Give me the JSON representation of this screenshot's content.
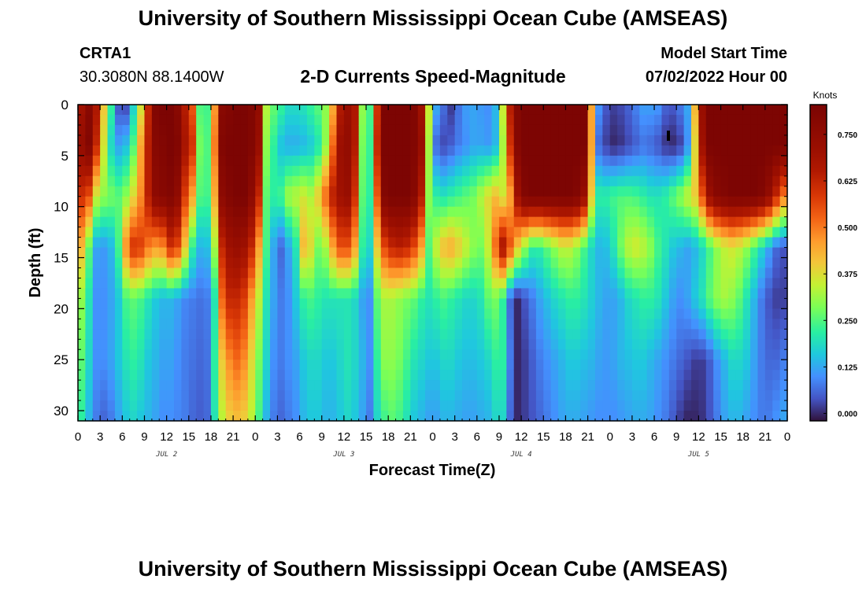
{
  "header": {
    "title": "University of Southern Mississippi Ocean Cube (AMSEAS)",
    "station": "CRTA1",
    "coords": "30.3080N  88.1400W",
    "plot_title": "2-D Currents Speed-Magnitude",
    "model_start_label": "Model Start Time",
    "model_start_value": "07/02/2022 Hour 00"
  },
  "footer": {
    "title": "University of Southern Mississippi Ocean Cube (AMSEAS)"
  },
  "chart_data": {
    "type": "heatmap",
    "title": "2-D Currents Speed-Magnitude",
    "xlabel": "Forecast Time(Z)",
    "ylabel": "Depth (ft)",
    "x_range_hours": [
      0,
      96
    ],
    "x_tick_labels": [
      "0",
      "3",
      "6",
      "9",
      "12",
      "15",
      "18",
      "21",
      "0",
      "3",
      "6",
      "9",
      "12",
      "15",
      "18",
      "21",
      "0",
      "3",
      "6",
      "9",
      "12",
      "15",
      "18",
      "21",
      "0",
      "3",
      "6",
      "9",
      "12",
      "15",
      "18",
      "21",
      "0"
    ],
    "day_labels": [
      {
        "label": "JUL 2",
        "hour": 12
      },
      {
        "label": "JUL 3",
        "hour": 36
      },
      {
        "label": "JUL 4",
        "hour": 60
      },
      {
        "label": "JUL 5",
        "hour": 84
      }
    ],
    "y_range_ft": [
      0,
      31
    ],
    "y_ticks": [
      0,
      5,
      10,
      15,
      20,
      25,
      30
    ],
    "colorbar": {
      "unit_label": "Knots",
      "range": [
        -0.02,
        0.83
      ],
      "ticks": [
        0.0,
        0.125,
        0.25,
        0.375,
        0.5,
        0.625,
        0.75
      ],
      "tick_labels": [
        "0.000",
        "0.125",
        "0.250",
        "0.375",
        "0.500",
        "0.625",
        "0.750"
      ]
    },
    "time_hours": [
      0,
      1,
      2,
      3,
      4,
      5,
      6,
      7,
      8,
      9,
      10,
      11,
      12,
      13,
      14,
      15,
      16,
      17,
      18,
      19,
      20,
      21,
      22,
      23,
      24,
      25,
      26,
      27,
      28,
      29,
      30,
      31,
      32,
      33,
      34,
      35,
      36,
      37,
      38,
      39,
      40,
      41,
      42,
      43,
      44,
      45,
      46,
      47,
      48,
      49,
      50,
      51,
      52,
      53,
      54,
      55,
      56,
      57,
      58,
      59,
      60,
      61,
      62,
      63,
      64,
      65,
      66,
      67,
      68,
      69,
      70,
      71,
      72,
      73,
      74,
      75,
      76,
      77,
      78,
      79,
      80,
      81,
      82,
      83,
      84,
      85,
      86,
      87,
      88,
      89,
      90,
      91,
      92,
      93,
      94,
      95
    ],
    "depth_ft": [
      0.5,
      4,
      9,
      14,
      19,
      25,
      30.5
    ],
    "speed_knots_by_depth": [
      [
        0.7,
        0.78,
        0.66,
        0.4,
        0.22,
        0.05,
        0.04,
        0.18,
        0.37,
        0.62,
        0.8,
        0.82,
        0.82,
        0.78,
        0.65,
        0.55,
        0.25,
        0.24,
        0.47,
        0.78,
        0.8,
        0.82,
        0.82,
        0.8,
        0.74,
        0.33,
        0.26,
        0.22,
        0.18,
        0.18,
        0.19,
        0.22,
        0.25,
        0.3,
        0.45,
        0.66,
        0.72,
        0.66,
        0.3,
        0.24,
        0.6,
        0.82,
        0.82,
        0.82,
        0.82,
        0.8,
        0.7,
        0.35,
        0.12,
        0.06,
        0.02,
        0.07,
        0.11,
        0.12,
        0.11,
        0.1,
        0.14,
        0.35,
        0.64,
        0.79,
        0.82,
        0.82,
        0.82,
        0.82,
        0.82,
        0.82,
        0.82,
        0.82,
        0.82,
        0.45,
        0.1,
        0.04,
        0.02,
        0.03,
        0.05,
        0.08,
        0.11,
        0.11,
        0.1,
        0.05,
        0.04,
        0.07,
        0.12,
        0.42,
        0.72,
        0.82,
        0.82,
        0.82,
        0.82,
        0.82,
        0.82,
        0.82,
        0.82,
        0.82,
        0.82,
        0.82
      ],
      [
        0.74,
        0.8,
        0.62,
        0.36,
        0.18,
        0.12,
        0.15,
        0.25,
        0.45,
        0.64,
        0.78,
        0.8,
        0.82,
        0.8,
        0.68,
        0.6,
        0.28,
        0.25,
        0.5,
        0.8,
        0.82,
        0.82,
        0.82,
        0.8,
        0.72,
        0.3,
        0.22,
        0.15,
        0.13,
        0.13,
        0.14,
        0.16,
        0.2,
        0.3,
        0.52,
        0.71,
        0.74,
        0.65,
        0.28,
        0.23,
        0.62,
        0.82,
        0.82,
        0.82,
        0.82,
        0.8,
        0.72,
        0.32,
        0.06,
        0.03,
        0.05,
        0.08,
        0.1,
        0.12,
        0.12,
        0.11,
        0.14,
        0.32,
        0.6,
        0.79,
        0.82,
        0.82,
        0.82,
        0.82,
        0.82,
        0.82,
        0.82,
        0.82,
        0.82,
        0.45,
        0.06,
        0.02,
        0.0,
        0.01,
        0.03,
        0.05,
        0.07,
        0.06,
        0.04,
        0.01,
        0.0,
        0.02,
        0.1,
        0.38,
        0.7,
        0.82,
        0.82,
        0.82,
        0.82,
        0.82,
        0.82,
        0.82,
        0.82,
        0.82,
        0.82,
        0.82
      ],
      [
        0.6,
        0.55,
        0.35,
        0.3,
        0.28,
        0.26,
        0.3,
        0.38,
        0.48,
        0.64,
        0.76,
        0.78,
        0.8,
        0.75,
        0.58,
        0.45,
        0.25,
        0.24,
        0.44,
        0.76,
        0.8,
        0.82,
        0.82,
        0.76,
        0.62,
        0.26,
        0.22,
        0.24,
        0.32,
        0.34,
        0.36,
        0.33,
        0.4,
        0.52,
        0.64,
        0.7,
        0.72,
        0.6,
        0.26,
        0.22,
        0.54,
        0.8,
        0.82,
        0.82,
        0.82,
        0.78,
        0.65,
        0.3,
        0.22,
        0.2,
        0.22,
        0.24,
        0.26,
        0.28,
        0.33,
        0.38,
        0.42,
        0.36,
        0.45,
        0.7,
        0.8,
        0.82,
        0.82,
        0.82,
        0.82,
        0.82,
        0.82,
        0.8,
        0.72,
        0.4,
        0.22,
        0.22,
        0.24,
        0.25,
        0.25,
        0.24,
        0.22,
        0.2,
        0.2,
        0.22,
        0.26,
        0.3,
        0.35,
        0.4,
        0.55,
        0.72,
        0.78,
        0.8,
        0.82,
        0.82,
        0.82,
        0.82,
        0.8,
        0.74,
        0.62,
        0.5
      ],
      [
        0.42,
        0.26,
        0.12,
        0.11,
        0.14,
        0.24,
        0.48,
        0.6,
        0.58,
        0.5,
        0.46,
        0.48,
        0.6,
        0.56,
        0.4,
        0.22,
        0.14,
        0.15,
        0.32,
        0.62,
        0.7,
        0.72,
        0.7,
        0.62,
        0.45,
        0.24,
        0.12,
        0.06,
        0.12,
        0.2,
        0.42,
        0.38,
        0.28,
        0.32,
        0.45,
        0.55,
        0.55,
        0.45,
        0.22,
        0.18,
        0.4,
        0.56,
        0.62,
        0.64,
        0.62,
        0.56,
        0.45,
        0.25,
        0.35,
        0.42,
        0.44,
        0.4,
        0.35,
        0.3,
        0.28,
        0.35,
        0.52,
        0.68,
        0.55,
        0.4,
        0.3,
        0.22,
        0.22,
        0.26,
        0.3,
        0.34,
        0.34,
        0.3,
        0.24,
        0.18,
        0.14,
        0.15,
        0.2,
        0.28,
        0.34,
        0.36,
        0.34,
        0.3,
        0.24,
        0.2,
        0.16,
        0.14,
        0.12,
        0.14,
        0.18,
        0.24,
        0.3,
        0.34,
        0.36,
        0.34,
        0.3,
        0.24,
        0.18,
        0.12,
        0.06,
        0.04
      ],
      [
        0.3,
        0.2,
        0.1,
        0.1,
        0.12,
        0.16,
        0.24,
        0.26,
        0.24,
        0.2,
        0.16,
        0.14,
        0.14,
        0.12,
        0.09,
        0.08,
        0.07,
        0.08,
        0.2,
        0.52,
        0.62,
        0.62,
        0.58,
        0.46,
        0.34,
        0.2,
        0.12,
        0.08,
        0.1,
        0.16,
        0.22,
        0.24,
        0.22,
        0.2,
        0.2,
        0.2,
        0.2,
        0.18,
        0.12,
        0.1,
        0.26,
        0.32,
        0.32,
        0.3,
        0.28,
        0.26,
        0.22,
        0.2,
        0.22,
        0.24,
        0.22,
        0.2,
        0.18,
        0.18,
        0.2,
        0.26,
        0.28,
        0.22,
        0.06,
        0.0,
        0.04,
        0.08,
        0.12,
        0.15,
        0.18,
        0.2,
        0.22,
        0.22,
        0.2,
        0.17,
        0.14,
        0.12,
        0.12,
        0.14,
        0.18,
        0.2,
        0.22,
        0.22,
        0.2,
        0.16,
        0.12,
        0.1,
        0.12,
        0.16,
        0.2,
        0.26,
        0.3,
        0.32,
        0.3,
        0.26,
        0.2,
        0.14,
        0.08,
        0.04,
        0.02,
        0.02
      ],
      [
        0.26,
        0.18,
        0.1,
        0.1,
        0.12,
        0.16,
        0.2,
        0.22,
        0.2,
        0.16,
        0.14,
        0.12,
        0.12,
        0.1,
        0.08,
        0.07,
        0.06,
        0.07,
        0.22,
        0.4,
        0.48,
        0.52,
        0.48,
        0.38,
        0.28,
        0.18,
        0.1,
        0.08,
        0.1,
        0.12,
        0.16,
        0.18,
        0.18,
        0.16,
        0.16,
        0.18,
        0.2,
        0.18,
        0.14,
        0.1,
        0.22,
        0.3,
        0.3,
        0.28,
        0.24,
        0.2,
        0.18,
        0.16,
        0.16,
        0.18,
        0.18,
        0.16,
        0.15,
        0.15,
        0.16,
        0.18,
        0.22,
        0.22,
        0.08,
        0.0,
        0.02,
        0.05,
        0.08,
        0.1,
        0.12,
        0.14,
        0.16,
        0.16,
        0.15,
        0.14,
        0.12,
        0.11,
        0.12,
        0.14,
        0.15,
        0.16,
        0.16,
        0.14,
        0.12,
        0.1,
        0.08,
        0.06,
        0.04,
        0.02,
        0.02,
        0.05,
        0.1,
        0.14,
        0.18,
        0.18,
        0.16,
        0.12,
        0.08,
        0.06,
        0.06,
        0.08
      ],
      [
        0.22,
        0.14,
        0.08,
        0.06,
        0.08,
        0.12,
        0.16,
        0.18,
        0.16,
        0.14,
        0.12,
        0.1,
        0.1,
        0.09,
        0.08,
        0.06,
        0.05,
        0.06,
        0.2,
        0.34,
        0.4,
        0.42,
        0.4,
        0.34,
        0.24,
        0.14,
        0.08,
        0.06,
        0.08,
        0.1,
        0.14,
        0.16,
        0.16,
        0.14,
        0.14,
        0.16,
        0.18,
        0.16,
        0.12,
        0.08,
        0.18,
        0.24,
        0.26,
        0.24,
        0.2,
        0.16,
        0.14,
        0.12,
        0.12,
        0.14,
        0.14,
        0.13,
        0.12,
        0.12,
        0.13,
        0.14,
        0.18,
        0.18,
        0.06,
        0.0,
        0.02,
        0.04,
        0.06,
        0.08,
        0.1,
        0.12,
        0.13,
        0.13,
        0.12,
        0.11,
        0.1,
        0.1,
        0.1,
        0.11,
        0.12,
        0.13,
        0.13,
        0.12,
        0.1,
        0.08,
        0.05,
        0.02,
        0.0,
        0.0,
        0.01,
        0.04,
        0.08,
        0.12,
        0.14,
        0.14,
        0.12,
        0.1,
        0.08,
        0.08,
        0.1,
        0.12
      ]
    ]
  }
}
